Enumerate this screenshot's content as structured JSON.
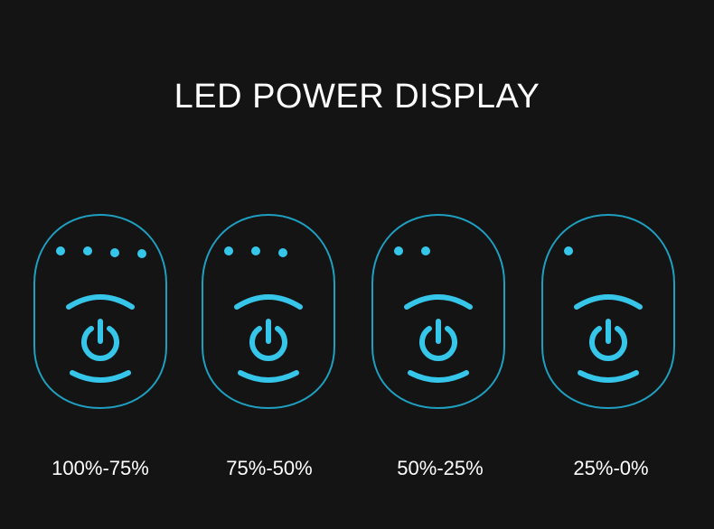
{
  "title": "LED POWER DISPLAY",
  "accent_color": "#36c6ea",
  "outline_color": "#1f9fc0",
  "panels": [
    {
      "label": "100%-75%",
      "leds_lit": 4,
      "icon": "power-icon"
    },
    {
      "label": "75%-50%",
      "leds_lit": 3,
      "icon": "power-icon"
    },
    {
      "label": "50%-25%",
      "leds_lit": 2,
      "icon": "power-icon"
    },
    {
      "label": "25%-0%",
      "leds_lit": 1,
      "icon": "power-icon"
    }
  ]
}
